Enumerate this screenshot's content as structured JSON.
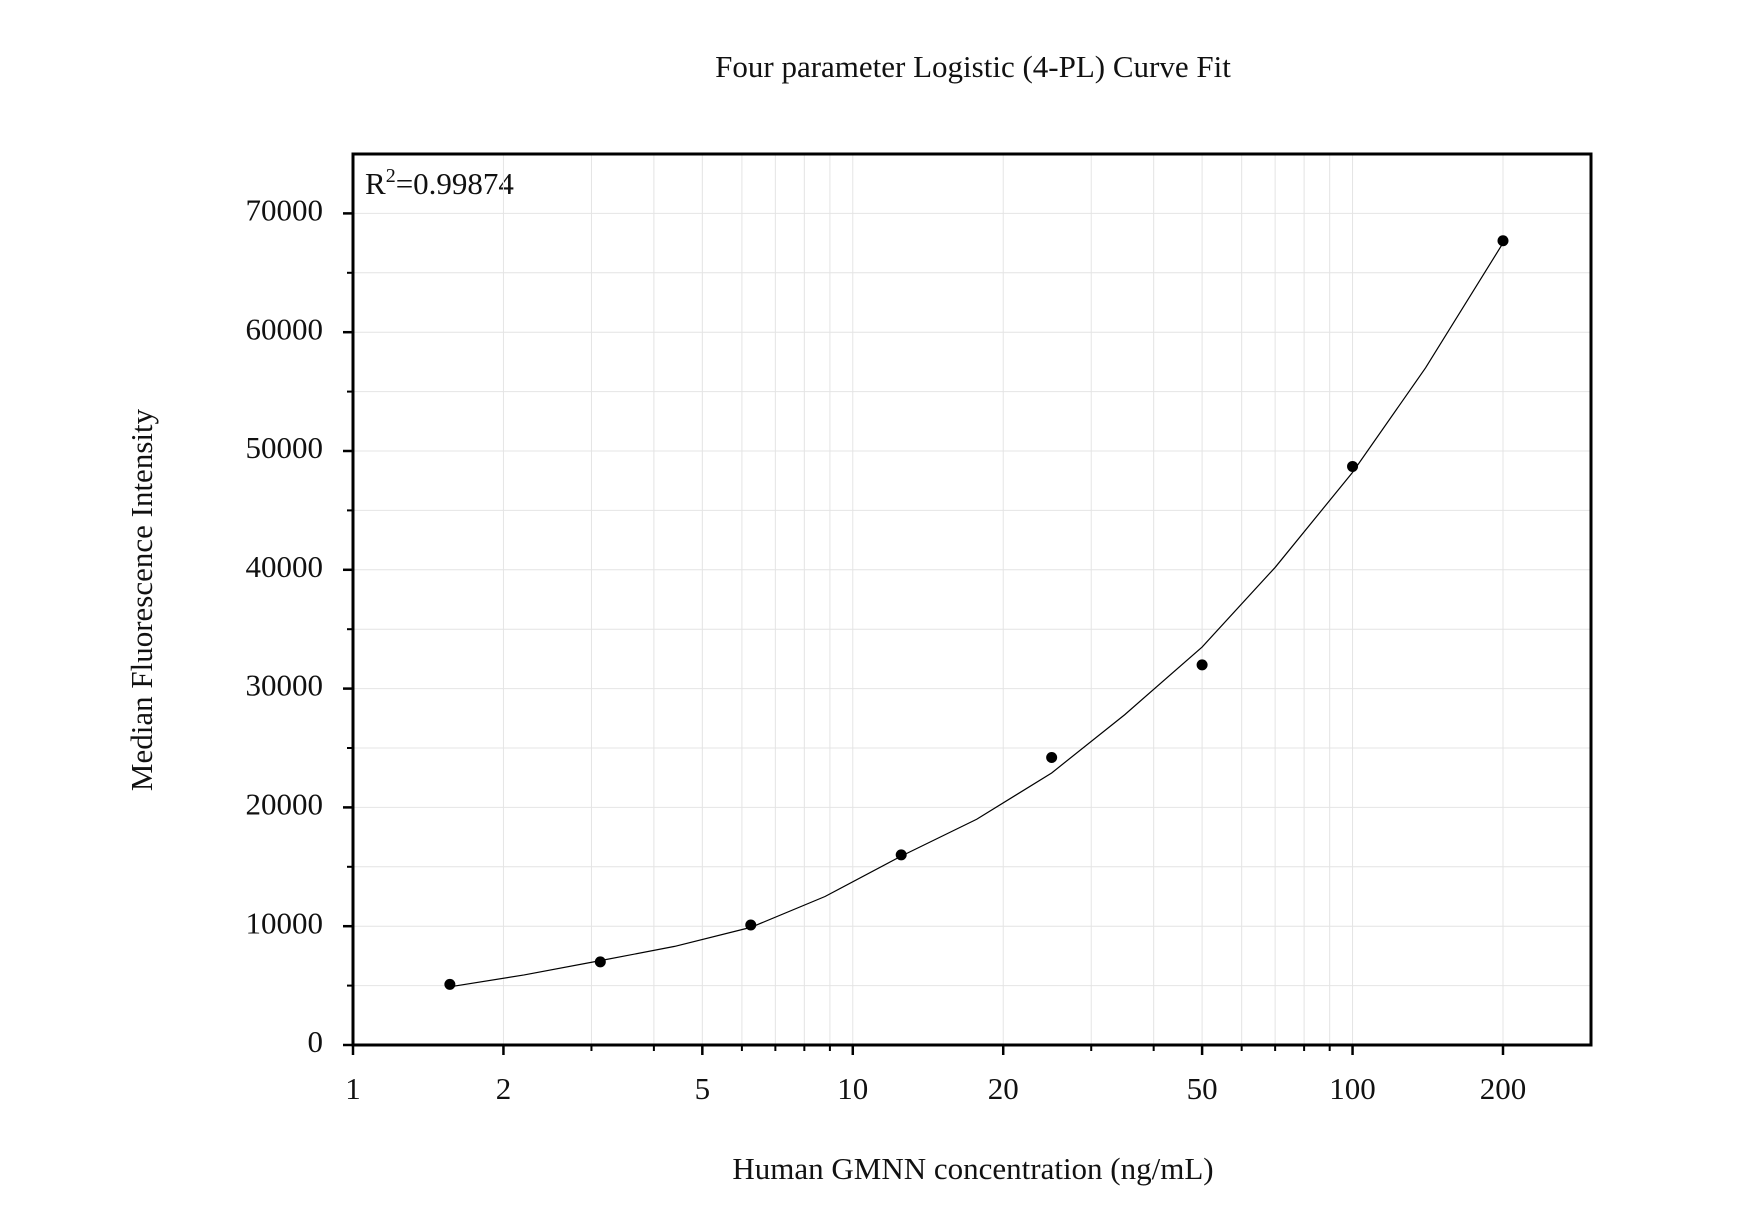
{
  "chart_data": {
    "type": "scatter",
    "title": "Four parameter Logistic (4-PL) Curve Fit",
    "x_label": "Human GMNN concentration (ng/mL)",
    "y_label": "Median Fluorescence Intensity",
    "annotation": {
      "base": "R",
      "superscript": "2",
      "rest": "=0.99874"
    },
    "x": [
      1.5625,
      3.125,
      6.25,
      12.5,
      25,
      50,
      100,
      200
    ],
    "values": [
      5100,
      7000,
      10100,
      16000,
      24200,
      32000,
      48700,
      67700
    ],
    "color": "#000000",
    "curve": {
      "x": [
        1.5625,
        2.2,
        3.125,
        4.4,
        6.25,
        8.8,
        12.5,
        17.7,
        25,
        35,
        50,
        70,
        100,
        140,
        200
      ],
      "values": [
        4900,
        5900,
        7100,
        8300,
        9900,
        12500,
        15900,
        19000,
        22900,
        27800,
        33500,
        40200,
        48200,
        57000,
        67500
      ]
    },
    "xscale": "log",
    "xlim": [
      1,
      300
    ],
    "xticks": [
      1,
      2,
      5,
      10,
      20,
      50,
      100,
      200
    ],
    "xminor": [
      3,
      4,
      6,
      7,
      8,
      9,
      30,
      40,
      60,
      70,
      80,
      90
    ],
    "ylim": [
      0,
      75000
    ],
    "yticks": [
      0,
      10000,
      20000,
      30000,
      40000,
      50000,
      60000,
      70000
    ],
    "yminor": [
      5000,
      15000,
      25000,
      35000,
      45000,
      55000,
      65000
    ],
    "grid": true
  }
}
